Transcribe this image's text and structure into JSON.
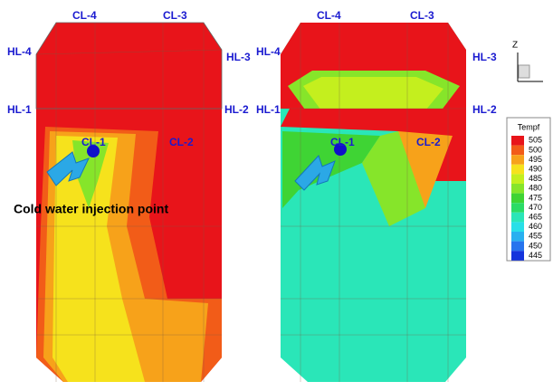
{
  "left_model": {
    "labels": [
      "CL-4",
      "CL-3",
      "HL-4",
      "HL-3",
      "HL-1",
      "HL-2",
      "CL-1",
      "CL-2"
    ],
    "annotation": "Cold water injection point"
  },
  "right_model": {
    "labels": [
      "CL-4",
      "CL-3",
      "HL-4",
      "HL-3",
      "HL-1",
      "HL-2",
      "CL-1",
      "CL-2"
    ]
  },
  "axis_icon": {
    "label": "Z"
  },
  "legend": {
    "title": "Tempf",
    "levels": [
      {
        "value": 505,
        "color": "#e8141a"
      },
      {
        "value": 500,
        "color": "#f25c18"
      },
      {
        "value": 495,
        "color": "#f7a21a"
      },
      {
        "value": 490,
        "color": "#f6e21c"
      },
      {
        "value": 485,
        "color": "#c4ef1e"
      },
      {
        "value": 480,
        "color": "#86e52a"
      },
      {
        "value": 475,
        "color": "#3fd434"
      },
      {
        "value": 470,
        "color": "#2bdc66"
      },
      {
        "value": 465,
        "color": "#2ae6b8"
      },
      {
        "value": 460,
        "color": "#28dfe8"
      },
      {
        "value": 455,
        "color": "#28b0f0"
      },
      {
        "value": 450,
        "color": "#2674ee"
      },
      {
        "value": 445,
        "color": "#1434dc"
      }
    ]
  }
}
